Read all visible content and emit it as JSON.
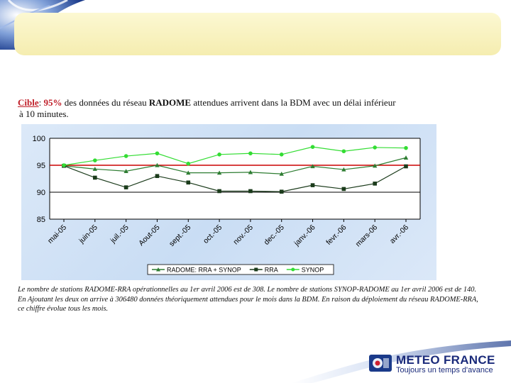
{
  "heading": {
    "label": "Cible",
    "sep": ": ",
    "percent": "95%",
    "text_a": " des données du réseau ",
    "radome": "RADOME",
    "text_b": " attendues arrivent dans la BDM avec un délai inférieur",
    "line2": "à 10 minutes."
  },
  "caption": "Le nombre de stations RADOME-RRA opérationnelles au 1er avril 2006 est de 308. Le nombre de stations SYNOP-RADOME au 1er avril 2006 est de 140. En Ajoutant les deux on arrive à 306480 données théoriquement attendues pour le mois dans la BDM. En raison du déploiement du réseau RADOME-RRA, ce chiffre évolue tous les mois.",
  "logo": {
    "name": "METEO FRANCE",
    "tagline": "Toujours un temps d'avance"
  },
  "colors": {
    "target": "#cc0000",
    "radome": "#2e7d32",
    "rra": "#1b3b1b",
    "synop": "#33dd33",
    "brand": "#1a3a8a"
  },
  "chart_data": {
    "type": "line",
    "categories": [
      "mai-05",
      "juin-05",
      "juil.-05",
      "Aout-05",
      "sept.-05",
      "oct.-05",
      "nov.-05",
      "dec.-05",
      "janv.-06",
      "fevr.-06",
      "mars-06",
      "avr.-06"
    ],
    "ylim": [
      85,
      100
    ],
    "yticks": [
      85,
      90,
      95,
      100
    ],
    "grid": "horizontal",
    "legend_position": "bottom",
    "target": {
      "value": 95
    },
    "series": [
      {
        "name": "RADOME: RRA + SYNOP",
        "marker": "triangle",
        "key": "radome",
        "values": [
          94.9,
          94.3,
          93.9,
          95.0,
          93.6,
          93.6,
          93.7,
          93.4,
          94.8,
          94.2,
          94.9,
          96.4
        ]
      },
      {
        "name": "RRA",
        "marker": "square",
        "key": "rra",
        "values": [
          94.9,
          92.7,
          90.9,
          93.0,
          91.8,
          90.2,
          90.2,
          90.1,
          91.3,
          90.6,
          91.6,
          94.8
        ]
      },
      {
        "name": "SYNOP",
        "marker": "circle",
        "key": "synop",
        "values": [
          95.0,
          95.9,
          96.7,
          97.2,
          95.3,
          97.0,
          97.2,
          97.0,
          98.4,
          97.6,
          98.3,
          98.2
        ]
      }
    ]
  }
}
